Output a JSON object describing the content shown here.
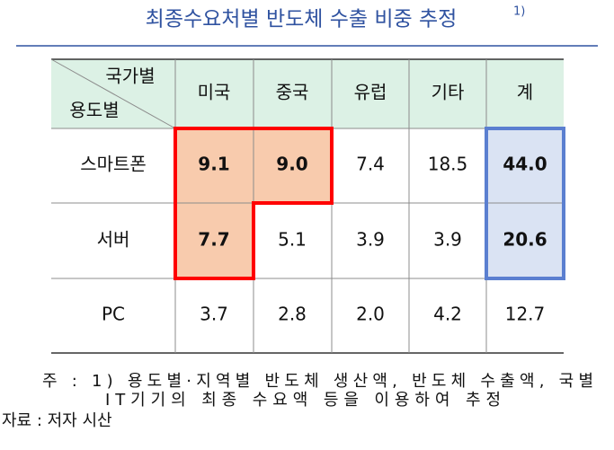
{
  "title": "최종수요처별 반도체 수출 비중 추정",
  "title_note": "1)",
  "table": {
    "corner_top": "국가별",
    "corner_bottom": "용도별",
    "columns": [
      "미국",
      "중국",
      "유럽",
      "기타",
      "계"
    ],
    "rows": [
      [
        "스마트폰",
        "9.1",
        "9.0",
        "7.4",
        "18.5",
        "44.0"
      ],
      [
        "서버",
        "7.7",
        "5.1",
        "3.9",
        "3.9",
        "20.6"
      ],
      [
        "PC",
        "3.7",
        "2.8",
        "2.0",
        "4.2",
        "12.7"
      ]
    ]
  },
  "notes": [
    "주 : 1) 용도별·지역별 반도체 생산액, 반도체 수출액, 국별",
    "IT기기의 최종 수요액 등을 이용하여 추정",
    "자료 : 저자 시산"
  ]
}
